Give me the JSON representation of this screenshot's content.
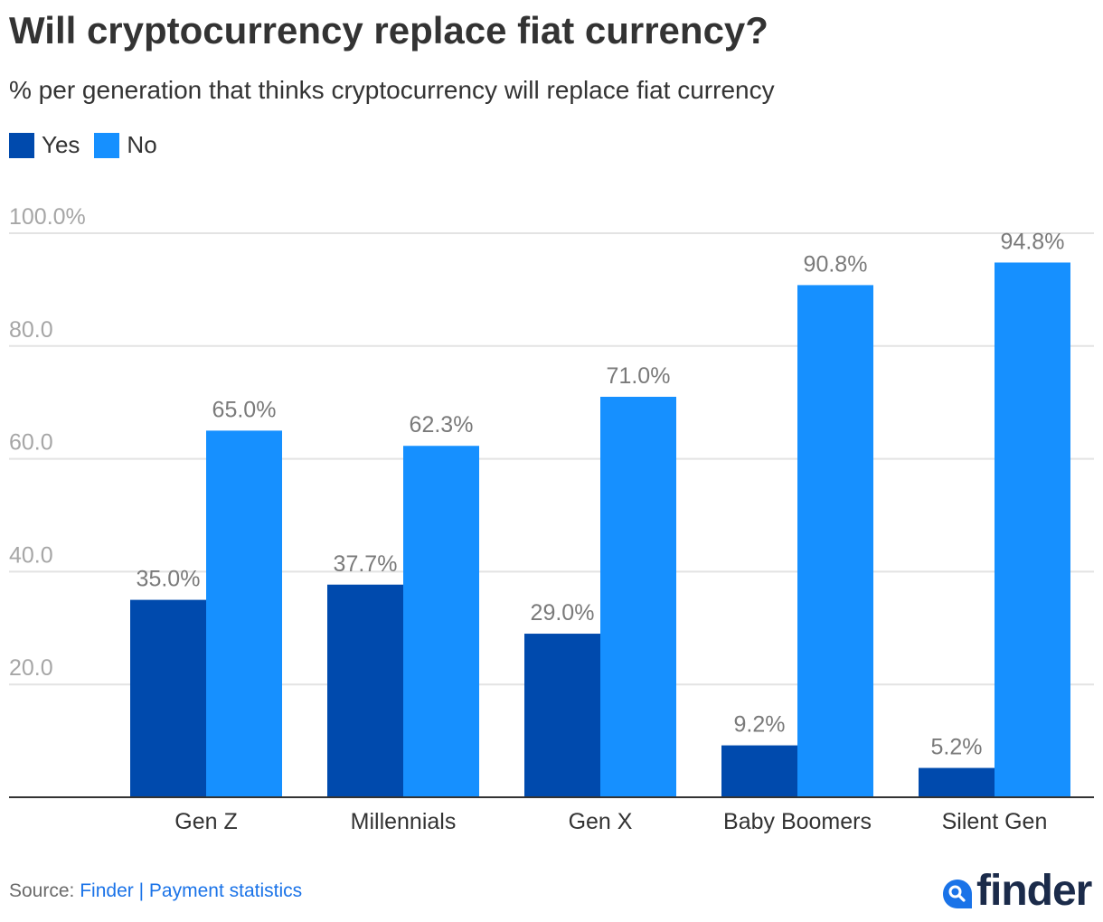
{
  "header": {
    "title": "Will cryptocurrency replace fiat currency?",
    "subtitle": "% per generation that thinks cryptocurrency will replace fiat currency"
  },
  "legend": [
    {
      "label": "Yes",
      "color": "#004aad"
    },
    {
      "label": "No",
      "color": "#1690ff"
    }
  ],
  "footer": {
    "source_prefix": "Source:",
    "source_link": "Finder",
    "separator": "|",
    "stats_link": "Payment statistics"
  },
  "logo": {
    "text": "finder",
    "icon": "search-icon",
    "icon_color": "#1a73e8"
  },
  "chart_data": {
    "type": "bar",
    "title": "Will cryptocurrency replace fiat currency?",
    "subtitle": "% per generation that thinks cryptocurrency will replace fiat currency",
    "xlabel": "",
    "ylabel": "",
    "categories": [
      "Gen Z",
      "Millennials",
      "Gen X",
      "Baby Boomers",
      "Silent Gen"
    ],
    "series": [
      {
        "name": "Yes",
        "color": "#004aad",
        "values": [
          35.0,
          37.7,
          29.0,
          9.2,
          5.2
        ],
        "labels": [
          "35.0%",
          "37.7%",
          "29.0%",
          "9.2%",
          "5.2%"
        ]
      },
      {
        "name": "No",
        "color": "#1690ff",
        "values": [
          65.0,
          62.3,
          71.0,
          90.8,
          94.8
        ],
        "labels": [
          "65.0%",
          "62.3%",
          "71.0%",
          "90.8%",
          "94.8%"
        ]
      }
    ],
    "ylim": [
      0,
      100
    ],
    "yticks": [
      20,
      40,
      60,
      80,
      100
    ],
    "ytick_labels": [
      "20.0",
      "40.0",
      "60.0",
      "80.0",
      "100.0%"
    ],
    "grid": true,
    "legend_position": "top-left"
  }
}
